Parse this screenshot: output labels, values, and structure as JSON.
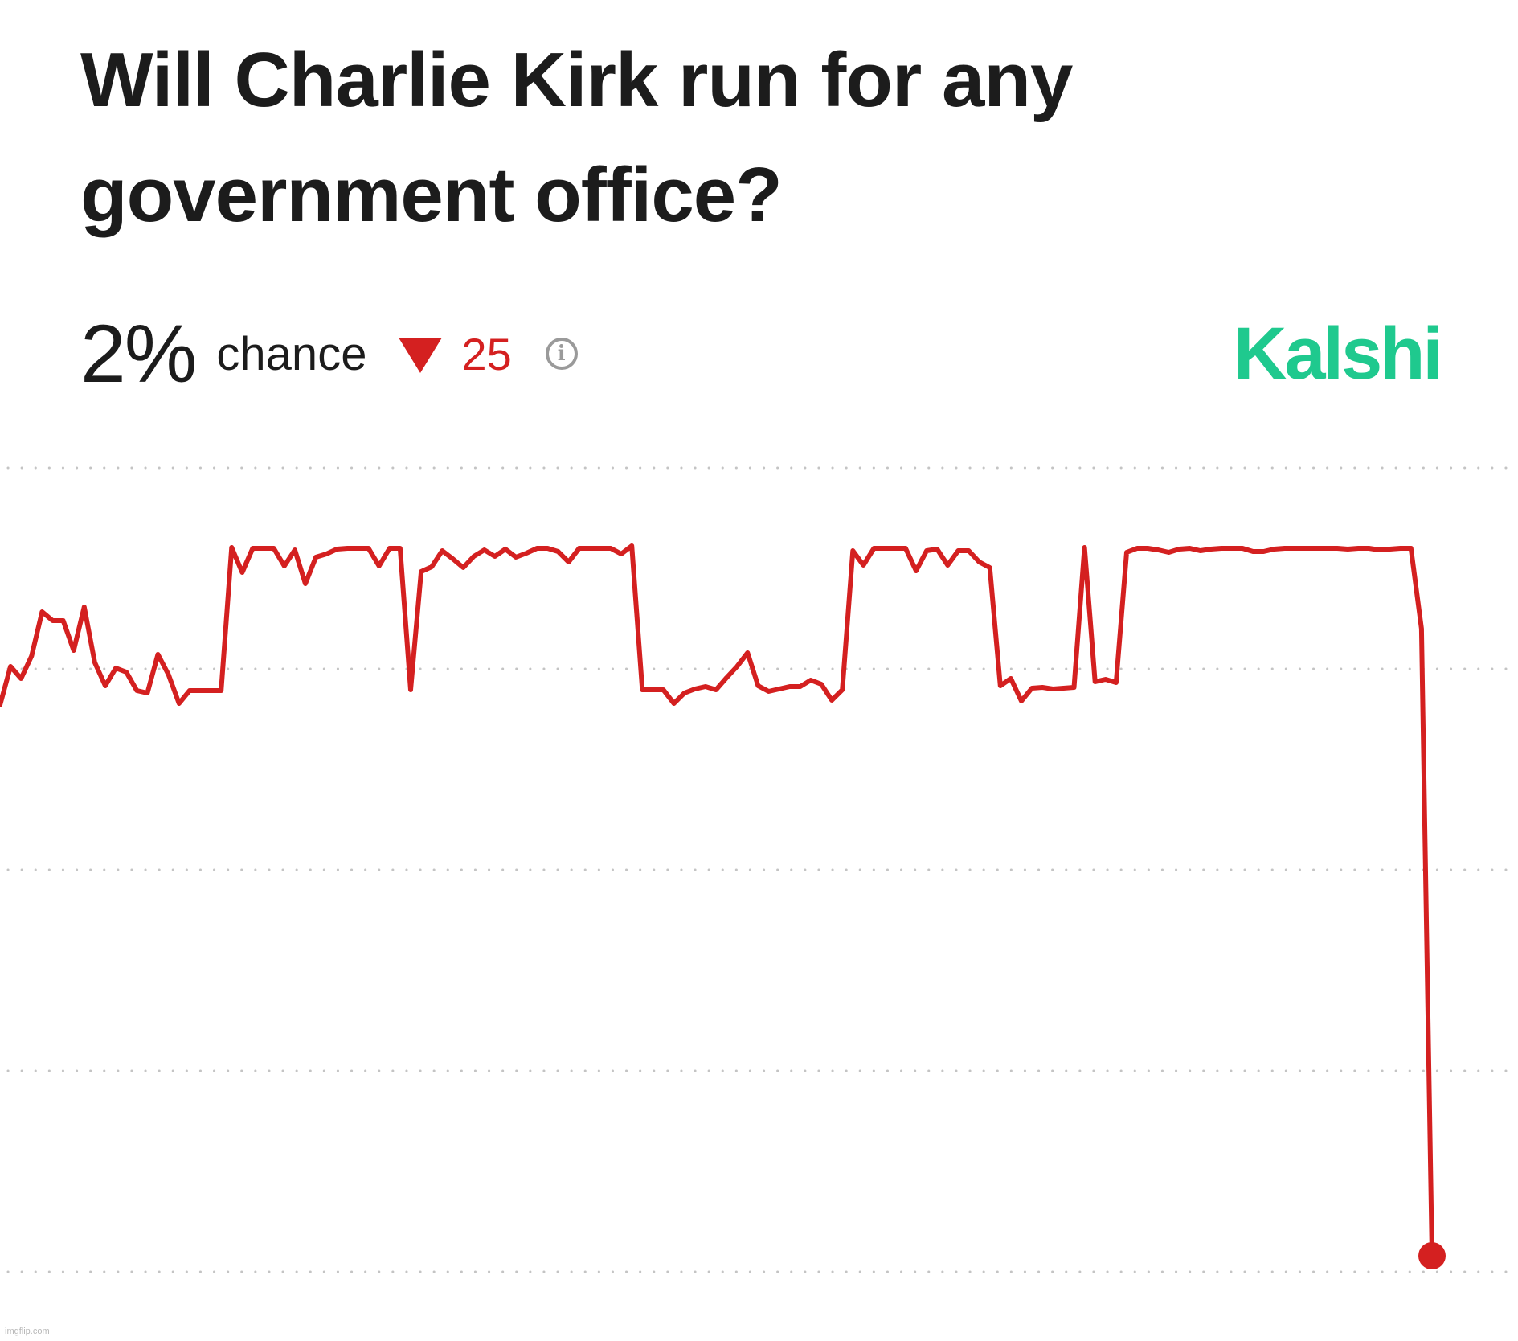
{
  "header": {
    "title": "Will Charlie Kirk run for any government office?",
    "percent": "2%",
    "chance_label": "chance",
    "delta": "25",
    "delta_direction": "down",
    "info_icon": "info-circle-icon",
    "brand": "Kalshi"
  },
  "colors": {
    "line": "#d42020",
    "brand": "#1fc98e",
    "grid": "#c4c4c4",
    "text": "#1c1c1c"
  },
  "watermark": "imgflip.com",
  "chart_data": {
    "type": "line",
    "title": "",
    "xlabel": "",
    "ylabel": "",
    "ylim": [
      0,
      100
    ],
    "y_gridlines": [
      0,
      25,
      50,
      75,
      100
    ],
    "grid": "horizontal dotted",
    "legend": "none",
    "end_marker": true,
    "series": [
      {
        "values": [
          70.5,
          75.3,
          73.8,
          76.6,
          82.1,
          81.0,
          81.0,
          77.3,
          82.7,
          75.8,
          72.9,
          75.1,
          74.6,
          72.3,
          72.0,
          76.8,
          74.3,
          70.7,
          72.3,
          72.3,
          72.3,
          72.3,
          90.1,
          87.0,
          90.0,
          90.0,
          90.0,
          87.8,
          89.8,
          85.6,
          88.9,
          89.3,
          89.9,
          90.0,
          90.0,
          90.0,
          87.8,
          90.0,
          90.0,
          72.4,
          87.1,
          87.7,
          89.7,
          88.7,
          87.6,
          89.0,
          89.8,
          89.0,
          89.9,
          88.9,
          89.4,
          90.0,
          90.0,
          89.6,
          88.3,
          90.0,
          90.0,
          90.0,
          90.0,
          89.3,
          90.3,
          72.4,
          72.4,
          72.4,
          70.7,
          72.0,
          72.5,
          72.8,
          72.4,
          73.9,
          75.3,
          77.0,
          72.9,
          72.2,
          72.5,
          72.8,
          72.8,
          73.6,
          73.1,
          71.1,
          72.4,
          89.7,
          87.9,
          90.0,
          90.0,
          90.0,
          90.0,
          87.2,
          89.7,
          89.9,
          87.9,
          89.7,
          89.7,
          88.3,
          87.6,
          72.9,
          73.8,
          71.0,
          72.6,
          72.7,
          72.5,
          72.6,
          72.7,
          90.1,
          73.4,
          73.7,
          73.3,
          89.5,
          90.0,
          90.0,
          89.8,
          89.5,
          89.9,
          90.0,
          89.7,
          89.9,
          90.0,
          90.0,
          90.0,
          89.6,
          89.6,
          89.9,
          90.0,
          90.0,
          90.0,
          90.0,
          90.0,
          90.0,
          89.9,
          90.0,
          90.0,
          89.8,
          89.9,
          90.0,
          90.0,
          80.0,
          2.0
        ]
      }
    ]
  }
}
